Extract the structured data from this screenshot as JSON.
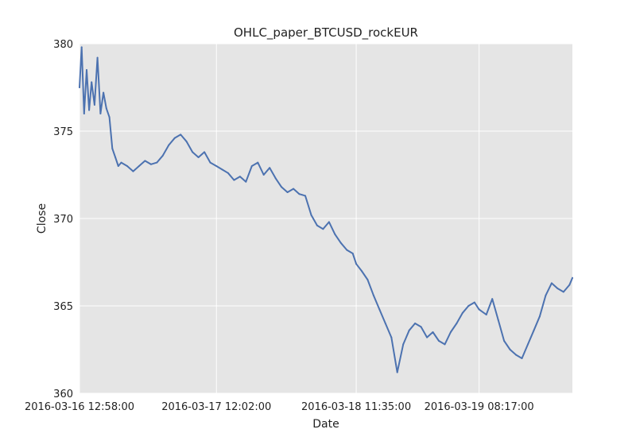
{
  "chart_data": {
    "type": "line",
    "title": "OHLC_paper_BTCUSD_rockEUR",
    "xlabel": "Date",
    "ylabel": "Close",
    "ylim": [
      360,
      380
    ],
    "yticks": [
      "360",
      "365",
      "370",
      "375",
      "380"
    ],
    "xlim": [
      "2016-03-16 12:58:00",
      "2016-03-20 00:00:00"
    ],
    "xticks": [
      {
        "value": "2016-03-16 12:58:00",
        "label": "2016-03-16 12:58:00"
      },
      {
        "value": "2016-03-17 12:02:00",
        "label": "2016-03-17 12:02:00"
      },
      {
        "value": "2016-03-18 11:35:00",
        "label": "2016-03-18 11:35:00"
      },
      {
        "value": "2016-03-19 08:17:00",
        "label": "2016-03-19 08:17:00"
      }
    ],
    "grid": true,
    "background": "#e5e5e5",
    "line_color": "#4c72b0",
    "series": [
      {
        "x": [
          "2016-03-16 12:58:00",
          "2016-03-16 13:20:00",
          "2016-03-16 13:45:00",
          "2016-03-16 14:10:00",
          "2016-03-16 14:35:00",
          "2016-03-16 15:00:00",
          "2016-03-16 15:30:00",
          "2016-03-16 16:00:00",
          "2016-03-16 16:30:00",
          "2016-03-16 17:00:00",
          "2016-03-16 17:30:00",
          "2016-03-16 18:00:00",
          "2016-03-16 18:30:00",
          "2016-03-16 19:00:00",
          "2016-03-16 19:30:00",
          "2016-03-16 20:00:00",
          "2016-03-16 21:00:00",
          "2016-03-16 22:00:00",
          "2016-03-16 23:00:00",
          "2016-03-17 00:00:00",
          "2016-03-17 01:00:00",
          "2016-03-17 02:00:00",
          "2016-03-17 03:00:00",
          "2016-03-17 04:00:00",
          "2016-03-17 05:00:00",
          "2016-03-17 06:00:00",
          "2016-03-17 07:00:00",
          "2016-03-17 08:00:00",
          "2016-03-17 09:00:00",
          "2016-03-17 10:00:00",
          "2016-03-17 11:00:00",
          "2016-03-17 12:02:00",
          "2016-03-17 13:00:00",
          "2016-03-17 14:00:00",
          "2016-03-17 15:00:00",
          "2016-03-17 16:00:00",
          "2016-03-17 17:00:00",
          "2016-03-17 18:00:00",
          "2016-03-17 19:00:00",
          "2016-03-17 20:00:00",
          "2016-03-17 21:00:00",
          "2016-03-17 22:00:00",
          "2016-03-17 23:00:00",
          "2016-03-18 00:00:00",
          "2016-03-18 01:00:00",
          "2016-03-18 02:00:00",
          "2016-03-18 03:00:00",
          "2016-03-18 04:00:00",
          "2016-03-18 05:00:00",
          "2016-03-18 06:00:00",
          "2016-03-18 07:00:00",
          "2016-03-18 08:00:00",
          "2016-03-18 09:00:00",
          "2016-03-18 10:00:00",
          "2016-03-18 11:00:00",
          "2016-03-18 11:35:00",
          "2016-03-18 12:30:00",
          "2016-03-18 13:30:00",
          "2016-03-18 14:30:00",
          "2016-03-18 15:30:00",
          "2016-03-18 16:30:00",
          "2016-03-18 17:30:00",
          "2016-03-18 18:30:00",
          "2016-03-18 19:30:00",
          "2016-03-18 20:30:00",
          "2016-03-18 21:30:00",
          "2016-03-18 22:30:00",
          "2016-03-18 23:30:00",
          "2016-03-19 00:30:00",
          "2016-03-19 01:30:00",
          "2016-03-19 02:30:00",
          "2016-03-19 03:30:00",
          "2016-03-19 04:30:00",
          "2016-03-19 05:30:00",
          "2016-03-19 06:30:00",
          "2016-03-19 07:30:00",
          "2016-03-19 08:17:00",
          "2016-03-19 09:30:00",
          "2016-03-19 10:30:00",
          "2016-03-19 11:30:00",
          "2016-03-19 12:30:00",
          "2016-03-19 13:30:00",
          "2016-03-19 14:30:00",
          "2016-03-19 15:30:00",
          "2016-03-19 16:30:00",
          "2016-03-19 17:30:00",
          "2016-03-19 18:30:00",
          "2016-03-19 19:30:00",
          "2016-03-19 20:30:00",
          "2016-03-19 21:30:00",
          "2016-03-19 22:30:00",
          "2016-03-19 23:30:00",
          "2016-03-20 00:00:00"
        ],
        "y": [
          377.5,
          379.8,
          376.0,
          378.5,
          376.2,
          377.8,
          376.5,
          379.2,
          376.0,
          377.2,
          376.3,
          375.8,
          374.0,
          373.5,
          373.0,
          373.2,
          373.0,
          372.7,
          373.0,
          373.3,
          373.1,
          373.2,
          373.6,
          374.2,
          374.6,
          374.8,
          374.4,
          373.8,
          373.5,
          373.8,
          373.2,
          373.0,
          372.8,
          372.6,
          372.2,
          372.4,
          372.1,
          373.0,
          373.2,
          372.5,
          372.9,
          372.3,
          371.8,
          371.5,
          371.7,
          371.4,
          371.3,
          370.2,
          369.6,
          369.4,
          369.8,
          369.1,
          368.6,
          368.2,
          368.0,
          367.4,
          367.0,
          366.5,
          365.6,
          364.8,
          364.0,
          363.2,
          361.2,
          362.8,
          363.6,
          364.0,
          363.8,
          363.2,
          363.5,
          363.0,
          362.8,
          363.5,
          364.0,
          364.6,
          365.0,
          365.2,
          364.8,
          364.5,
          365.4,
          364.2,
          363.0,
          362.5,
          362.2,
          362.0,
          362.8,
          363.6,
          364.4,
          365.6,
          366.3,
          366.0,
          365.8,
          366.2,
          366.6
        ]
      }
    ]
  }
}
